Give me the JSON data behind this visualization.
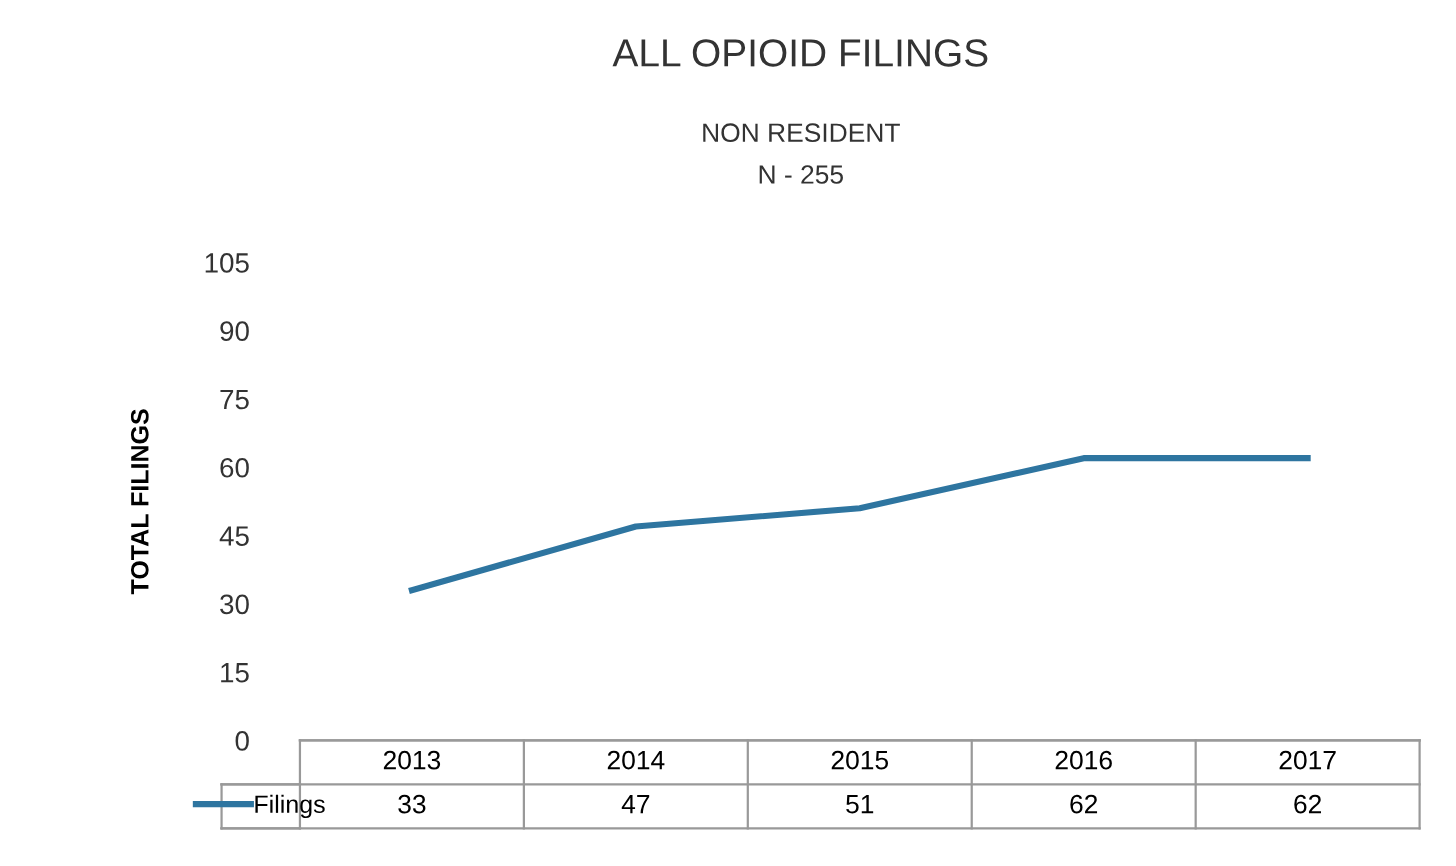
{
  "chart_data": {
    "type": "line",
    "title": "ALL OPIOID FILINGS",
    "subtitle": "NON RESIDENT\nN - 255",
    "ylabel": "TOTAL FILINGS",
    "categories": [
      "2013",
      "2014",
      "2015",
      "2016",
      "2017"
    ],
    "series": [
      {
        "name": "Filings",
        "color": "#2e75a0",
        "values": [
          33,
          47,
          51,
          62,
          62
        ]
      }
    ],
    "ylim": [
      0,
      105
    ],
    "yticks": [
      0,
      15,
      30,
      45,
      60,
      75,
      90,
      105
    ],
    "data_labels": true,
    "legend": "bottom",
    "grid": false,
    "marker": "none",
    "line_style": "solid"
  }
}
